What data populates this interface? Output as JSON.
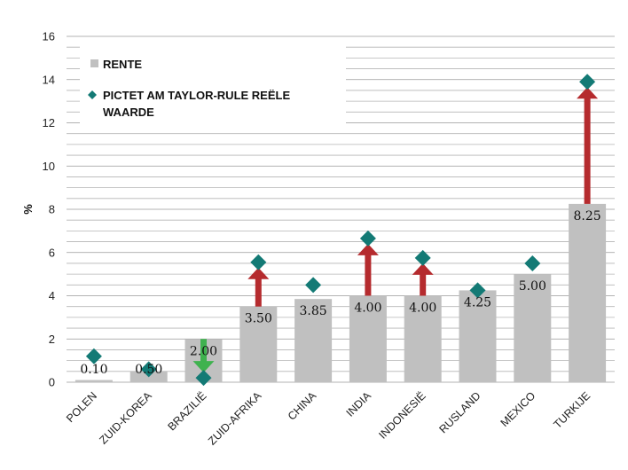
{
  "chart_data": {
    "type": "bar",
    "ylabel": "%",
    "ylim": [
      0,
      16
    ],
    "yticks": [
      0,
      2,
      4,
      6,
      8,
      10,
      12,
      14,
      16
    ],
    "grid": true,
    "legend_position": "top-left",
    "categories": [
      "POLEN",
      "ZUID-KOREA",
      "BRAZILIË",
      "ZUID-AFRIKA",
      "CHINA",
      "INDIA",
      "INDONESIË",
      "RUSLAND",
      "MEXICO",
      "TURKIJE"
    ],
    "series": [
      {
        "name": "RENTE",
        "kind": "bar",
        "color": "#c0c0c0",
        "values": [
          0.1,
          0.5,
          2.0,
          3.5,
          3.85,
          4.0,
          4.0,
          4.25,
          5.0,
          8.25
        ],
        "labels": [
          "0.10",
          "0.50",
          "2.00",
          "3.50",
          "3.85",
          "4.00",
          "4.00",
          "4.25",
          "5.00",
          "8.25"
        ]
      },
      {
        "name": "PICTET AM TAYLOR-RULE REËLE WAARDE",
        "kind": "marker",
        "marker": "diamond",
        "color": "#137a75",
        "values": [
          1.2,
          0.6,
          0.2,
          5.55,
          4.5,
          6.65,
          5.75,
          4.25,
          5.5,
          13.9
        ]
      }
    ],
    "arrows": {
      "up_color": "#b52b2e",
      "down_color": "#3fb24f",
      "items": [
        {
          "category": "BRAZILIË",
          "from": 2.0,
          "to": 0.2,
          "direction": "down"
        },
        {
          "category": "ZUID-AFRIKA",
          "from": 3.5,
          "to": 5.55,
          "direction": "up"
        },
        {
          "category": "INDIA",
          "from": 4.0,
          "to": 6.65,
          "direction": "up"
        },
        {
          "category": "INDONESIË",
          "from": 4.0,
          "to": 5.75,
          "direction": "up"
        },
        {
          "category": "TURKIJE",
          "from": 8.25,
          "to": 13.9,
          "direction": "up"
        }
      ]
    },
    "legend": [
      {
        "text": "RENTE",
        "symbol": "square",
        "color": "#c0c0c0"
      },
      {
        "text": "PICTET AM TAYLOR-RULE REËLE",
        "text2": "WAARDE",
        "symbol": "diamond",
        "color": "#137a75"
      }
    ]
  }
}
